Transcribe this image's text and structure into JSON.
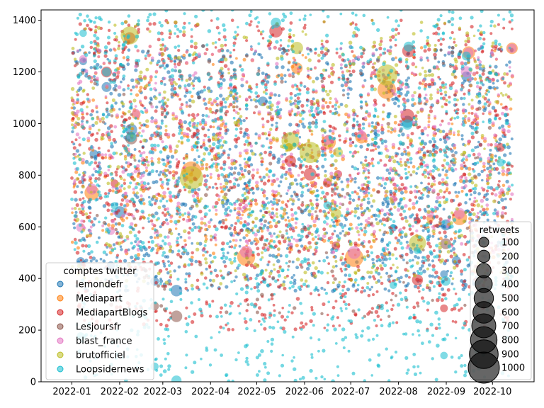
{
  "chart_data": {
    "type": "scatter",
    "title": "",
    "xlabel": "",
    "ylabel": "",
    "x_ticks": [
      "2022-01",
      "2022-02",
      "2022-03",
      "2022-04",
      "2022-05",
      "2022-06",
      "2022-07",
      "2022-08",
      "2022-09",
      "2022-10"
    ],
    "xlim": [
      "2021-12-12",
      "2022-10-28"
    ],
    "ylim": [
      0,
      1440
    ],
    "y_ticks": [
      0,
      200,
      400,
      600,
      800,
      1000,
      1200,
      1400
    ],
    "grid": false,
    "series_legend": {
      "title": "comptes twitter",
      "position": "lower-left",
      "entries": [
        {
          "name": "lemondefr",
          "color": "#1f77b4"
        },
        {
          "name": "Mediapart",
          "color": "#ff7f0e"
        },
        {
          "name": "MediapartBlogs",
          "color": "#d62728"
        },
        {
          "name": "Lesjoursfr",
          "color": "#8c564b"
        },
        {
          "name": "blast_france",
          "color": "#e377c2"
        },
        {
          "name": "brutofficiel",
          "color": "#bcbd22"
        },
        {
          "name": "Loopsidernews",
          "color": "#17becf"
        }
      ]
    },
    "size_legend": {
      "title": "retweets",
      "position": "lower-right",
      "values": [
        100,
        200,
        300,
        400,
        500,
        600,
        700,
        800,
        900,
        1000
      ]
    },
    "series": [
      {
        "name": "lemondefr",
        "y_range": [
          350,
          1300
        ],
        "density": "high",
        "marker_size_range_retweets": [
          1,
          150
        ]
      },
      {
        "name": "Mediapart",
        "y_range": [
          480,
          1300
        ],
        "density": "medium",
        "marker_size_range_retweets": [
          1,
          400
        ]
      },
      {
        "name": "MediapartBlogs",
        "y_range": [
          200,
          1400
        ],
        "density": "high",
        "marker_size_range_retweets": [
          1,
          200
        ]
      },
      {
        "name": "Lesjoursfr",
        "y_range": [
          250,
          1300
        ],
        "density": "low",
        "marker_size_range_retweets": [
          1,
          150
        ]
      },
      {
        "name": "blast_france",
        "y_range": [
          500,
          1300
        ],
        "density": "medium",
        "marker_size_range_retweets": [
          1,
          200
        ]
      },
      {
        "name": "brutofficiel",
        "y_range": [
          370,
          1400
        ],
        "density": "medium",
        "marker_size_range_retweets": [
          1,
          500
        ]
      },
      {
        "name": "Loopsidernews",
        "y_range": [
          0,
          1440
        ],
        "density": "high",
        "marker_size_range_retweets": [
          1,
          100
        ]
      }
    ]
  }
}
